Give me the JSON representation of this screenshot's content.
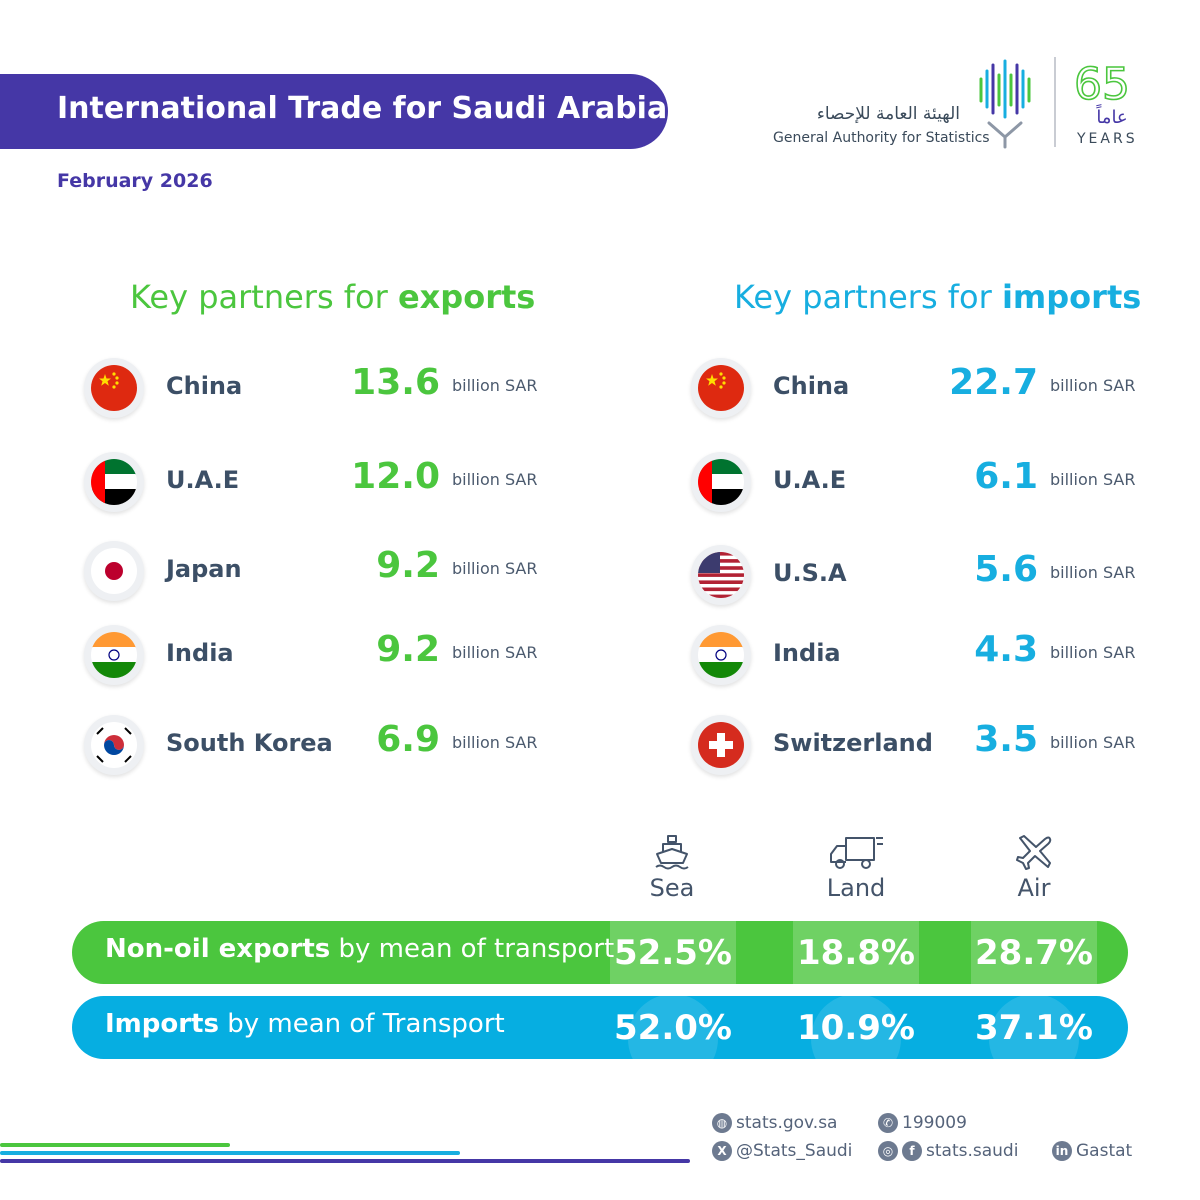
{
  "header": {
    "title": "International Trade for Saudi Arabia",
    "date": "February 2026",
    "logo_arabic": "الهيئة العامة للإحصاء",
    "logo_english": "General Authority for Statistics",
    "years_number": "65",
    "years_arabic": "عاماً",
    "years_label": "YEARS"
  },
  "exports": {
    "title_prefix": "Key partners for ",
    "title_bold": "exports",
    "rows": [
      {
        "country": "China",
        "value": "13.6",
        "unit": "billion SAR",
        "flag": "china-flag-icon"
      },
      {
        "country": "U.A.E",
        "value": "12.0",
        "unit": "billion SAR",
        "flag": "uae-flag-icon"
      },
      {
        "country": "Japan",
        "value": "9.2",
        "unit": "billion SAR",
        "flag": "japan-flag-icon"
      },
      {
        "country": "India",
        "value": "9.2",
        "unit": "billion SAR",
        "flag": "india-flag-icon"
      },
      {
        "country": "South Korea",
        "value": "6.9",
        "unit": "billion SAR",
        "flag": "south-korea-flag-icon"
      }
    ]
  },
  "imports": {
    "title_prefix": "Key partners for ",
    "title_bold": "imports",
    "rows": [
      {
        "country": "China",
        "value": "22.7",
        "unit": "billion SAR",
        "flag": "china-flag-icon"
      },
      {
        "country": "U.A.E",
        "value": "6.1",
        "unit": "billion SAR",
        "flag": "uae-flag-icon"
      },
      {
        "country": "U.S.A",
        "value": "5.6",
        "unit": "billion SAR",
        "flag": "usa-flag-icon"
      },
      {
        "country": "India",
        "value": "4.3",
        "unit": "billion SAR",
        "flag": "india-flag-icon"
      },
      {
        "country": "Switzerland",
        "value": "3.5",
        "unit": "billion SAR",
        "flag": "switzerland-flag-icon"
      }
    ]
  },
  "transport": {
    "modes": [
      {
        "label": "Sea",
        "icon": "ship-icon"
      },
      {
        "label": "Land",
        "icon": "truck-icon"
      },
      {
        "label": "Air",
        "icon": "airplane-icon"
      }
    ],
    "non_oil_exports": {
      "bold": "Non-oil exports",
      "rest": " by mean of transport",
      "values": [
        "52.5%",
        "18.8%",
        "28.7%"
      ]
    },
    "imports": {
      "bold": "Imports",
      "rest": " by mean of Transport",
      "values": [
        "52.0%",
        "10.9%",
        "37.1%"
      ]
    }
  },
  "footer": {
    "website": "stats.gov.sa",
    "phone": "199009",
    "twitter": "@Stats_Saudi",
    "social": "stats.saudi",
    "linkedin": "Gastat"
  },
  "colors": {
    "brand_purple": "#4537a6",
    "export_green": "#4bc63e",
    "import_blue": "#17aee0"
  }
}
